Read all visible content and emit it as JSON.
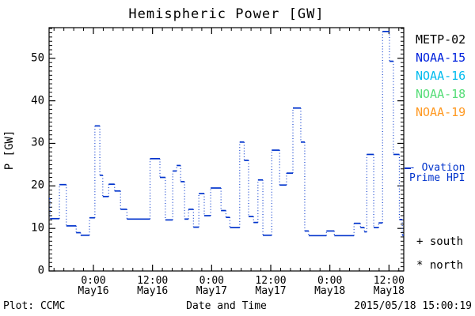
{
  "title": "Hemispheric Power [GW]",
  "y_axis": {
    "label": "P [GW]",
    "tick_labels": [
      "0",
      "10",
      "20",
      "30",
      "40",
      "50"
    ],
    "tick_values": [
      0,
      10,
      20,
      30,
      40,
      50
    ],
    "max_gw": 57.2
  },
  "x_axis": {
    "label": "Date and Time",
    "ticks": [
      {
        "time": "0:00",
        "date": "May16"
      },
      {
        "time": "12:00",
        "date": "May16"
      },
      {
        "time": "0:00",
        "date": "May17"
      },
      {
        "time": "12:00",
        "date": "May17"
      },
      {
        "time": "0:00",
        "date": "May18"
      },
      {
        "time": "12:00",
        "date": "May18"
      }
    ]
  },
  "legend": {
    "satellites": [
      {
        "label": "METP-02",
        "color": "#000000"
      },
      {
        "label": "NOAA-15",
        "color": "#0022dd"
      },
      {
        "label": "NOAA-16",
        "color": "#00bbee"
      },
      {
        "label": "NOAA-18",
        "color": "#55dd77"
      },
      {
        "label": "NOAA-19",
        "color": "#ff9922"
      }
    ],
    "ovation": {
      "line1": "- Ovation",
      "line2": "Prime HPI",
      "color": "#0033cc"
    },
    "hemisphere_markers": [
      {
        "symbol": "+",
        "label": "south",
        "display": "+ south"
      },
      {
        "symbol": "*",
        "label": "north",
        "display": "* north"
      }
    ]
  },
  "footer": {
    "left": "Plot: CCMC",
    "right": "2015/05/18 15:00:19"
  },
  "chart_data": {
    "type": "line",
    "style": "step-dotted",
    "series_name": "Ovation Prime HPI",
    "line_color": "#0033cc",
    "title": "Hemispheric Power [GW]",
    "xlabel": "Date and Time",
    "ylabel": "P [GW]",
    "x_unit": "hours since 2015-05-15 15:00",
    "x_range_hours": [
      0,
      72
    ],
    "ylim": [
      0,
      57.2
    ],
    "y_major_ticks": [
      0,
      10,
      20,
      30,
      40,
      50
    ],
    "x_major_tick_hours": [
      9,
      21,
      33,
      45,
      57,
      69
    ],
    "x_minor_tick_every_hours": 2,
    "y_minor_tick_every_gw": 1,
    "grid": false,
    "legend_position": "right",
    "steps_format": [
      "start_hour",
      "end_hour",
      "power_gw"
    ],
    "steps": [
      [
        0,
        0.2,
        17
      ],
      [
        0.2,
        2.1,
        12.3
      ],
      [
        2.1,
        3.5,
        20.3
      ],
      [
        3.5,
        5.5,
        10.6
      ],
      [
        5.5,
        6.4,
        9
      ],
      [
        6.4,
        8.2,
        8.4
      ],
      [
        8.2,
        9.3,
        12.5
      ],
      [
        9.3,
        10.3,
        34.1
      ],
      [
        10.3,
        10.9,
        22.5
      ],
      [
        10.9,
        12.1,
        17.5
      ],
      [
        12.1,
        13.3,
        20.4
      ],
      [
        13.3,
        14.5,
        18.8
      ],
      [
        14.5,
        15.8,
        14.5
      ],
      [
        15.8,
        20.5,
        12.2
      ],
      [
        20.5,
        22.5,
        26.4
      ],
      [
        22.5,
        23.6,
        22
      ],
      [
        23.6,
        25.1,
        12
      ],
      [
        25.1,
        25.9,
        23.5
      ],
      [
        25.9,
        26.7,
        24.8
      ],
      [
        26.7,
        27.5,
        21
      ],
      [
        27.5,
        28.3,
        12.2
      ],
      [
        28.3,
        29.3,
        14.5
      ],
      [
        29.3,
        30.4,
        10.3
      ],
      [
        30.4,
        31.5,
        18.2
      ],
      [
        31.5,
        32.8,
        13
      ],
      [
        32.8,
        34.9,
        19.5
      ],
      [
        34.9,
        35.9,
        14.2
      ],
      [
        35.9,
        36.7,
        12.6
      ],
      [
        36.7,
        38.7,
        10.2
      ],
      [
        38.7,
        39.6,
        30.3
      ],
      [
        39.6,
        40.5,
        26
      ],
      [
        40.5,
        41.5,
        12.8
      ],
      [
        41.5,
        42.4,
        11.4
      ],
      [
        42.4,
        43.4,
        21.4
      ],
      [
        43.4,
        45.2,
        8.4
      ],
      [
        45.2,
        46.8,
        28.4
      ],
      [
        46.8,
        48.2,
        20.2
      ],
      [
        48.2,
        49.5,
        23
      ],
      [
        49.5,
        51.1,
        38.3
      ],
      [
        51.1,
        51.9,
        30.3
      ],
      [
        51.9,
        52.7,
        9.4
      ],
      [
        52.7,
        56.3,
        8.3
      ],
      [
        56.3,
        57.9,
        9.4
      ],
      [
        57.9,
        61.9,
        8.3
      ],
      [
        61.9,
        63.2,
        11.2
      ],
      [
        63.2,
        64,
        10.2
      ],
      [
        64,
        64.5,
        9.2
      ],
      [
        64.5,
        65.9,
        27.4
      ],
      [
        65.9,
        66.9,
        10.2
      ],
      [
        66.9,
        67.7,
        11.3
      ],
      [
        67.7,
        69.1,
        56.3
      ],
      [
        69.1,
        69.9,
        49.3
      ],
      [
        69.9,
        71.1,
        27.4
      ],
      [
        71.1,
        71.7,
        12.1
      ],
      [
        71.7,
        72,
        8.4
      ]
    ]
  }
}
